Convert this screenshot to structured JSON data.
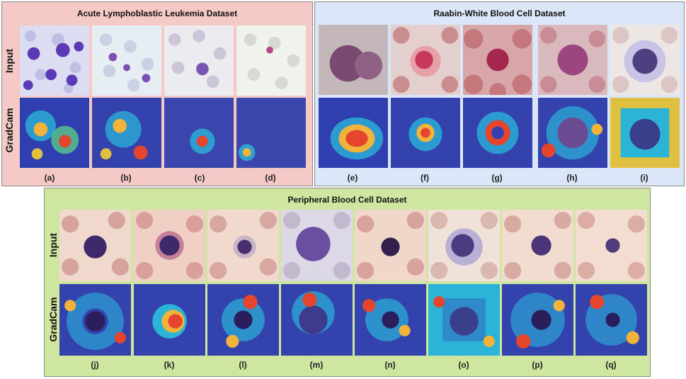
{
  "panels": {
    "all": {
      "title": "Acute Lymphoblastic Leukemia Dataset"
    },
    "raabin": {
      "title": "Raabin-White Blood Cell Dataset"
    },
    "pbc": {
      "title": "Peripheral Blood Cell Dataset"
    }
  },
  "row_labels": {
    "input": "Input",
    "gradcam": "GradCam"
  },
  "sublabels": {
    "a": "(a)",
    "b": "(b)",
    "c": "(c)",
    "d": "(d)",
    "e": "(e)",
    "f": "(f)",
    "g": "(g)",
    "h": "(h)",
    "i": "(i)",
    "j": "(j)",
    "k": "(k)",
    "l": "(l)",
    "m": "(m)",
    "n": "(n)",
    "o": "(o)",
    "p": "(p)",
    "q": "(q)"
  },
  "colors": {
    "all_panel_bg": "#f4c9c6",
    "raabin_panel_bg": "#dbe7f8",
    "pbc_panel_bg": "#cfe6a0"
  }
}
